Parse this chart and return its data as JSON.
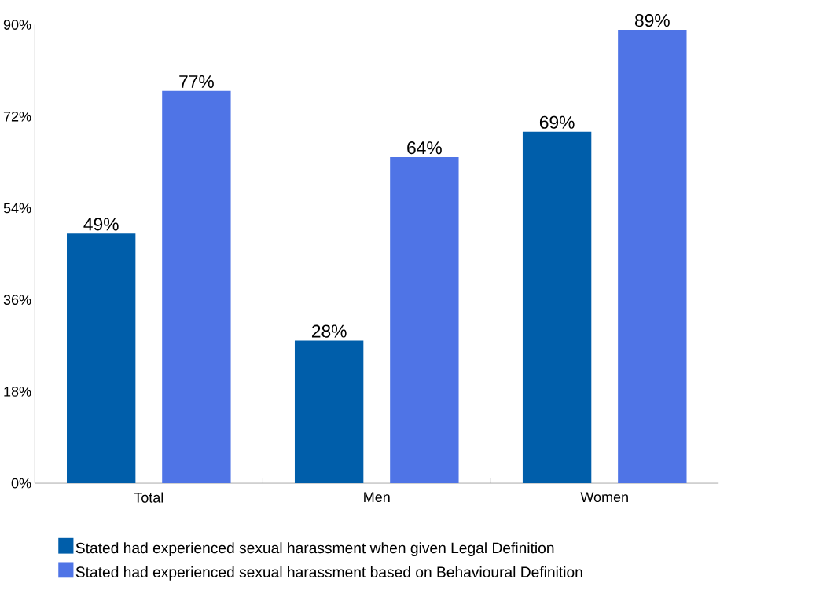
{
  "chart_data": {
    "type": "bar",
    "categories": [
      "Total",
      "Men",
      "Women"
    ],
    "series": [
      {
        "name": "Stated had experienced sexual harassment when given Legal Definition",
        "color": "#005eaa",
        "values": [
          49,
          28,
          69
        ],
        "value_labels": [
          "49%",
          "28%",
          "69%"
        ]
      },
      {
        "name": "Stated had experienced sexual harassment based on Behavioural Definition",
        "color": "#4f74e6",
        "values": [
          77,
          64,
          89
        ],
        "value_labels": [
          "77%",
          "64%",
          "89%"
        ]
      }
    ],
    "ylim": [
      0,
      90
    ],
    "yticks": [
      {
        "value": 0,
        "label": "0%"
      },
      {
        "value": 18,
        "label": "18%"
      },
      {
        "value": 36,
        "label": "36%"
      },
      {
        "value": 54,
        "label": "54%"
      },
      {
        "value": 72,
        "label": "72%"
      },
      {
        "value": 90,
        "label": "90%"
      }
    ],
    "grid": false,
    "legend": "bottom"
  }
}
